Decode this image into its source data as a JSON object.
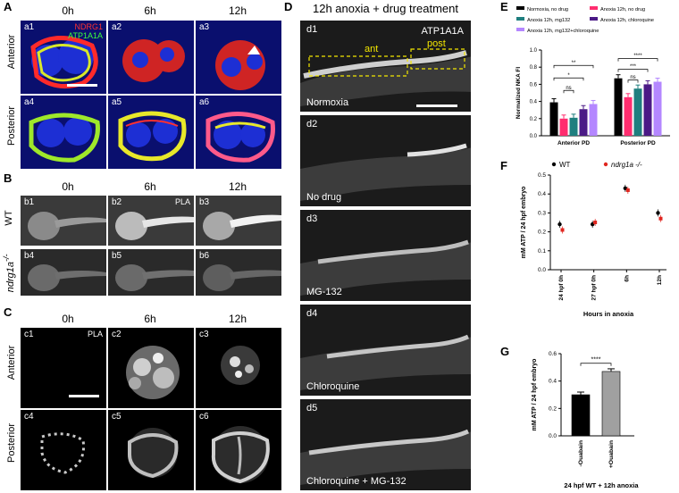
{
  "panel_letters": {
    "A": "A",
    "B": "B",
    "C": "C",
    "D": "D",
    "E": "E",
    "F": "F",
    "G": "G"
  },
  "panelA": {
    "cols": [
      "0h",
      "6h",
      "12h"
    ],
    "rows": [
      "Anterior",
      "Posterior"
    ],
    "tiles": [
      "a1",
      "a2",
      "a3",
      "a4",
      "a5",
      "a6"
    ],
    "legend_red": "NDRG1",
    "legend_green": "ATP1A1A"
  },
  "panelB": {
    "cols": [
      "0h",
      "6h",
      "12h"
    ],
    "rows": [
      "WT",
      "ndrg1a"
    ],
    "row2_sup": "-/-",
    "tiles": [
      "b1",
      "b2",
      "b3",
      "b4",
      "b5",
      "b6"
    ],
    "pla": "PLA"
  },
  "panelC": {
    "cols": [
      "0h",
      "6h",
      "12h"
    ],
    "rows": [
      "Anterior",
      "Posterior"
    ],
    "tiles": [
      "c1",
      "c2",
      "c3",
      "c4",
      "c5",
      "c6"
    ],
    "pla": "PLA"
  },
  "panelD": {
    "title": "12h anoxia + drug treatment",
    "marker": "ATP1A1A",
    "ant": "ant",
    "post": "post",
    "tiles": [
      {
        "id": "d1",
        "label": "Normoxia"
      },
      {
        "id": "d2",
        "label": "No drug"
      },
      {
        "id": "d3",
        "label": "MG-132"
      },
      {
        "id": "d4",
        "label": "Chloroquine"
      },
      {
        "id": "d5",
        "label": "Chloroquine + MG-132"
      }
    ]
  },
  "chart_data": [
    {
      "panel": "E",
      "type": "bar",
      "ylabel": "Normalized NKA FI",
      "ylim": [
        0,
        1.0
      ],
      "yticks": [
        "0.0",
        "0.2",
        "0.4",
        "0.6",
        "0.8",
        "1.0"
      ],
      "categories": [
        "Anterior PD",
        "Posterior PD"
      ],
      "series": [
        {
          "name": "Normoxia, no drug",
          "color": "#000000",
          "values": [
            0.39,
            0.67
          ]
        },
        {
          "name": "Anoxia 12h, no drug",
          "color": "#ff2d6f",
          "values": [
            0.2,
            0.45
          ]
        },
        {
          "name": "Anoxia 12h, mg132",
          "color": "#1f7f7f",
          "values": [
            0.21,
            0.55
          ]
        },
        {
          "name": "Anoxia 12h, chloroquine",
          "color": "#4b1a86",
          "values": [
            0.31,
            0.6
          ]
        },
        {
          "name": "Anoxia 12h, mg132+chloroquine",
          "color": "#b487ff",
          "values": [
            0.37,
            0.63
          ]
        }
      ],
      "significance": {
        "anterior": [
          "**",
          "*",
          "ns"
        ],
        "posterior": [
          "****",
          "***",
          "ns"
        ]
      }
    },
    {
      "panel": "F",
      "type": "scatter",
      "ylabel": "mM ATP / 24 hpf embryo",
      "xlabel": "Hours in anoxia",
      "ylim": [
        0,
        0.5
      ],
      "yticks": [
        "0.0",
        "0.1",
        "0.2",
        "0.3",
        "0.4",
        "0.5"
      ],
      "categories": [
        "24 hpf 0h",
        "27 hpf 0h",
        "6h",
        "12h"
      ],
      "series": [
        {
          "name": "WT",
          "color": "#000000",
          "values": [
            0.24,
            0.24,
            0.43,
            0.3
          ]
        },
        {
          "name": "ndrg1a -/-",
          "color": "#e0261f",
          "values": [
            0.21,
            0.25,
            0.42,
            0.27
          ]
        }
      ]
    },
    {
      "panel": "G",
      "type": "bar",
      "ylabel": "mM ATP / 24 hpf embryo",
      "xlabel": "24 hpf WT + 12h anoxia",
      "ylim": [
        0,
        0.6
      ],
      "yticks": [
        "0.0",
        "0.2",
        "0.4",
        "0.6"
      ],
      "categories": [
        "-Ouabain",
        "+Ouabain"
      ],
      "values": [
        0.3,
        0.47
      ],
      "colors": [
        "#000000",
        "#a0a0a0"
      ],
      "significance": "****"
    }
  ]
}
